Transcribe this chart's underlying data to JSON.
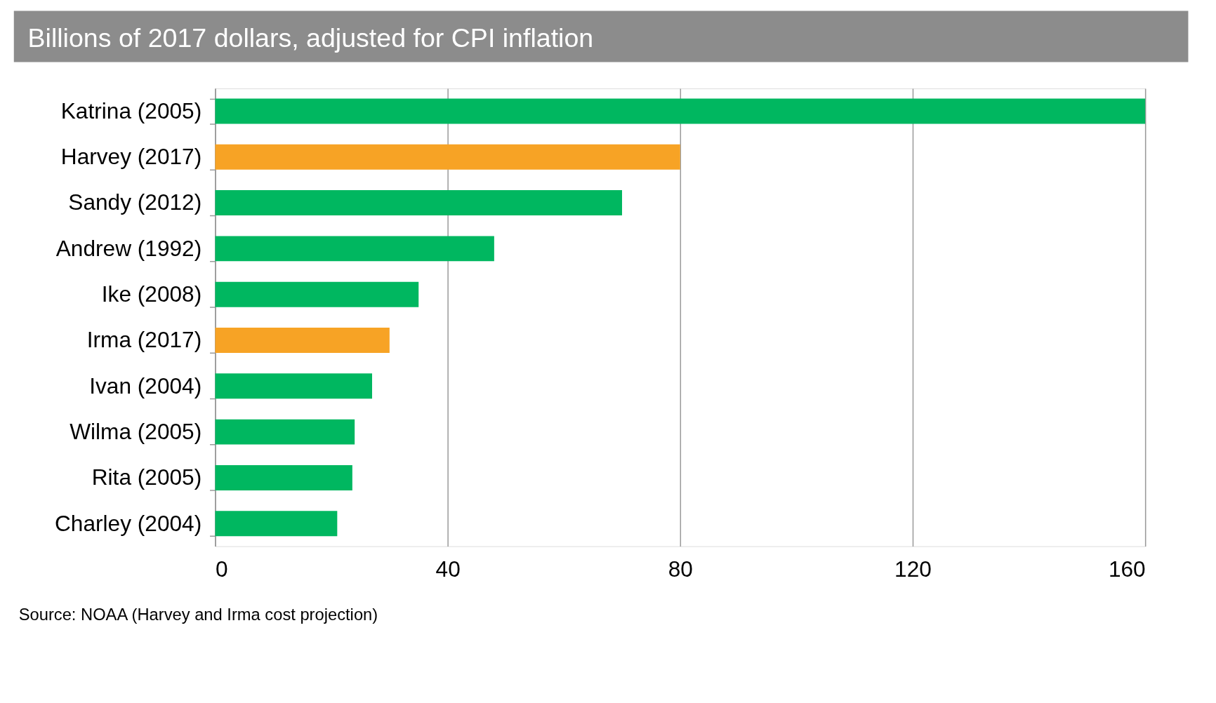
{
  "chart_data": {
    "type": "bar",
    "orientation": "horizontal",
    "title": "Billions of 2017 dollars, adjusted for CPI inflation",
    "categories": [
      "Katrina (2005)",
      "Harvey (2017)",
      "Sandy (2012)",
      "Andrew (1992)",
      "Ike (2008)",
      "Irma (2017)",
      "Ivan (2004)",
      "Wilma (2005)",
      "Rita (2005)",
      "Charley (2004)"
    ],
    "values": [
      160,
      80,
      70,
      48,
      35,
      30,
      27,
      24,
      23.6,
      21
    ],
    "colors": [
      "#00b760",
      "#f7a325",
      "#00b760",
      "#00b760",
      "#00b760",
      "#f7a325",
      "#00b760",
      "#00b760",
      "#00b760",
      "#00b760"
    ],
    "xlim": [
      0,
      160
    ],
    "xticks": [
      0,
      40,
      80,
      120,
      160
    ],
    "grid": "x",
    "annotations": [
      "Source: NOAA (Harvey and Irma cost projection)"
    ]
  }
}
